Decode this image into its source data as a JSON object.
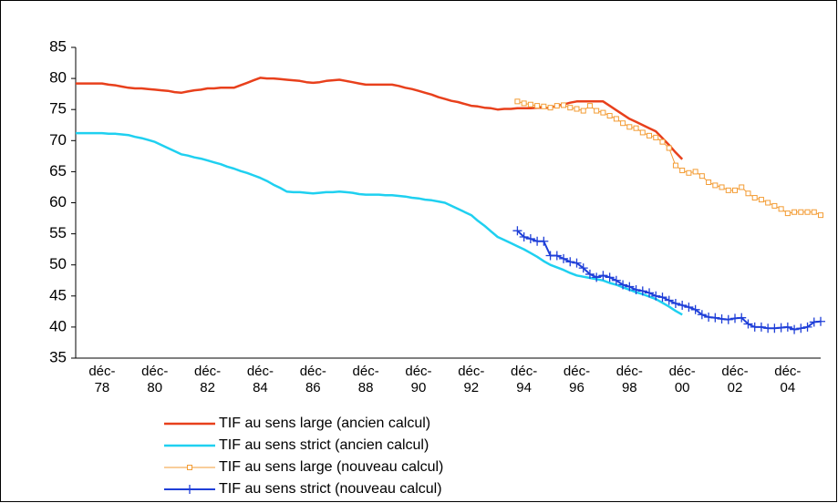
{
  "chart_data": {
    "type": "line",
    "categories": [
      null,
      null,
      null,
      null,
      "déc-78",
      null,
      null,
      null,
      null,
      null,
      null,
      null,
      "déc-80",
      null,
      null,
      null,
      null,
      null,
      null,
      null,
      "déc-82",
      null,
      null,
      null,
      null,
      null,
      null,
      null,
      "déc-84",
      null,
      null,
      null,
      null,
      null,
      null,
      null,
      "déc-86",
      null,
      null,
      null,
      null,
      null,
      null,
      null,
      "déc-88",
      null,
      null,
      null,
      null,
      null,
      null,
      null,
      "déc-90",
      null,
      null,
      null,
      null,
      null,
      null,
      null,
      "déc-92",
      null,
      null,
      null,
      null,
      null,
      null,
      null,
      "déc-94",
      null,
      null,
      null,
      null,
      null,
      null,
      null,
      "déc-96",
      null,
      null,
      null,
      null,
      null,
      null,
      null,
      "déc-98",
      null,
      null,
      null,
      null,
      null,
      null,
      null,
      "déc-00",
      null,
      null,
      null,
      null,
      null,
      null,
      null,
      "déc-02",
      null,
      null,
      null,
      null,
      null,
      null,
      null,
      "déc-04",
      null,
      null,
      null,
      null,
      null
    ],
    "series": [
      {
        "name": "TIF au sens large (ancien calcul)",
        "color": "#e8401c",
        "marker": "none",
        "values": [
          79.2,
          79.2,
          79.2,
          79.2,
          79.2,
          79.0,
          78.9,
          78.7,
          78.5,
          78.4,
          78.4,
          78.3,
          78.2,
          78.1,
          78.0,
          77.8,
          77.7,
          77.9,
          78.1,
          78.2,
          78.4,
          78.4,
          78.5,
          78.5,
          78.5,
          78.9,
          79.3,
          79.7,
          80.1,
          80.0,
          80.0,
          79.9,
          79.8,
          79.7,
          79.6,
          79.4,
          79.3,
          79.4,
          79.6,
          79.7,
          79.8,
          79.6,
          79.4,
          79.2,
          79.0,
          79.0,
          79.0,
          79.0,
          79.0,
          78.8,
          78.5,
          78.3,
          78.0,
          77.7,
          77.4,
          77.0,
          76.7,
          76.4,
          76.2,
          75.9,
          75.6,
          75.5,
          75.3,
          75.2,
          75.0,
          75.1,
          75.1,
          75.2,
          75.2,
          75.2,
          75.3,
          75.3,
          75.3,
          75.6,
          75.8,
          76.1,
          76.3,
          76.3,
          76.3,
          76.3,
          76.3,
          75.6,
          74.9,
          74.2,
          73.5,
          73.0,
          72.5,
          72.0,
          71.5,
          70.4,
          69.3,
          68.1,
          67.0,
          null,
          null,
          null,
          null,
          null,
          null,
          null,
          null,
          null,
          null,
          null,
          null,
          null,
          null,
          null,
          null,
          null,
          null,
          null,
          null,
          null
        ]
      },
      {
        "name": "TIF au sens strict (ancien calcul)",
        "color": "#1fd0f0",
        "marker": "none",
        "values": [
          71.2,
          71.2,
          71.2,
          71.2,
          71.2,
          71.1,
          71.1,
          71.0,
          70.9,
          70.6,
          70.4,
          70.1,
          69.8,
          69.3,
          68.8,
          68.3,
          67.8,
          67.6,
          67.3,
          67.1,
          66.8,
          66.5,
          66.2,
          65.8,
          65.5,
          65.1,
          64.8,
          64.4,
          64.0,
          63.5,
          62.9,
          62.4,
          61.8,
          61.7,
          61.7,
          61.6,
          61.5,
          61.6,
          61.7,
          61.7,
          61.8,
          61.7,
          61.6,
          61.4,
          61.3,
          61.3,
          61.3,
          61.2,
          61.2,
          61.1,
          61.0,
          60.8,
          60.7,
          60.5,
          60.4,
          60.2,
          60.0,
          59.5,
          59.0,
          58.5,
          58.0,
          57.1,
          56.3,
          55.4,
          54.5,
          54.0,
          53.5,
          53.0,
          52.5,
          51.9,
          51.3,
          50.6,
          50.0,
          49.6,
          49.2,
          48.7,
          48.3,
          48.1,
          47.9,
          47.7,
          47.5,
          47.1,
          46.8,
          46.4,
          46.0,
          45.6,
          45.3,
          44.9,
          44.5,
          43.9,
          43.3,
          42.6,
          42.0,
          null,
          null,
          null,
          null,
          null,
          null,
          null,
          null,
          null,
          null,
          null,
          null,
          null,
          null,
          null,
          null,
          null,
          null,
          null,
          null,
          null
        ]
      },
      {
        "name": "TIF au sens large (nouveau calcul)",
        "color": "#f39c34",
        "marker": "square",
        "values": [
          null,
          null,
          null,
          null,
          null,
          null,
          null,
          null,
          null,
          null,
          null,
          null,
          null,
          null,
          null,
          null,
          null,
          null,
          null,
          null,
          null,
          null,
          null,
          null,
          null,
          null,
          null,
          null,
          null,
          null,
          null,
          null,
          null,
          null,
          null,
          null,
          null,
          null,
          null,
          null,
          null,
          null,
          null,
          null,
          null,
          null,
          null,
          null,
          null,
          null,
          null,
          null,
          null,
          null,
          null,
          null,
          null,
          null,
          null,
          null,
          null,
          null,
          null,
          null,
          null,
          null,
          null,
          76.3,
          76.0,
          75.8,
          75.6,
          75.5,
          75.3,
          75.6,
          75.7,
          75.3,
          75.1,
          74.8,
          75.6,
          74.8,
          74.5,
          74.0,
          73.5,
          72.8,
          72.2,
          72.0,
          71.3,
          70.8,
          70.5,
          69.8,
          68.8,
          66.0,
          65.2,
          64.8,
          65.0,
          64.3,
          63.3,
          62.8,
          62.5,
          62.0,
          62.0,
          62.5,
          61.5,
          60.8,
          60.5,
          60.0,
          59.5,
          59.0,
          58.3,
          58.5,
          58.5,
          58.5,
          58.5,
          58.0
        ]
      },
      {
        "name": "TIF au sens strict (nouveau calcul)",
        "color": "#1f3fd8",
        "marker": "plus",
        "values": [
          null,
          null,
          null,
          null,
          null,
          null,
          null,
          null,
          null,
          null,
          null,
          null,
          null,
          null,
          null,
          null,
          null,
          null,
          null,
          null,
          null,
          null,
          null,
          null,
          null,
          null,
          null,
          null,
          null,
          null,
          null,
          null,
          null,
          null,
          null,
          null,
          null,
          null,
          null,
          null,
          null,
          null,
          null,
          null,
          null,
          null,
          null,
          null,
          null,
          null,
          null,
          null,
          null,
          null,
          null,
          null,
          null,
          null,
          null,
          null,
          null,
          null,
          null,
          null,
          null,
          null,
          null,
          55.5,
          54.5,
          54.2,
          53.8,
          53.8,
          51.5,
          51.5,
          51.0,
          50.5,
          50.3,
          49.5,
          48.5,
          48.0,
          48.3,
          48.0,
          47.5,
          46.8,
          46.5,
          46.0,
          45.8,
          45.5,
          45.0,
          44.8,
          44.3,
          43.8,
          43.5,
          43.2,
          42.8,
          42.0,
          41.6,
          41.5,
          41.3,
          41.2,
          41.4,
          41.5,
          40.5,
          40.0,
          40.0,
          39.8,
          39.8,
          39.9,
          40.0,
          39.6,
          39.8,
          40.0,
          40.8,
          40.9
        ]
      }
    ],
    "ylim": [
      35,
      85
    ],
    "yticks": [
      35,
      40,
      45,
      50,
      55,
      60,
      65,
      70,
      75,
      80,
      85
    ],
    "grid": false,
    "legend": "bottom"
  }
}
